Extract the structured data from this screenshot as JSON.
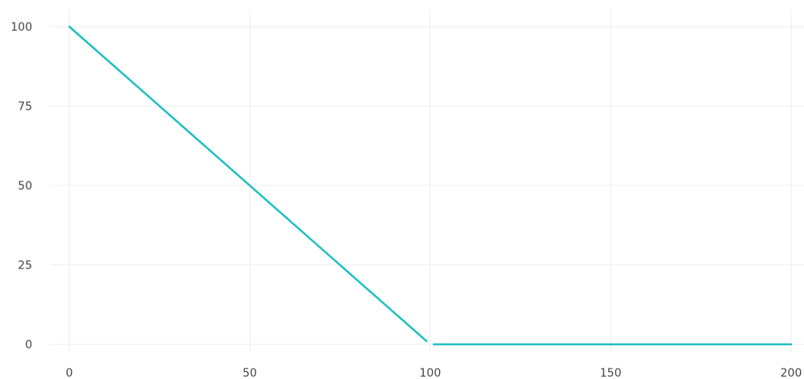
{
  "chart_data": {
    "type": "line",
    "title": "",
    "xlabel": "",
    "ylabel": "",
    "xlim": [
      0,
      200
    ],
    "ylim": [
      0,
      100
    ],
    "x_ticks": [
      0,
      50,
      100,
      150,
      200
    ],
    "y_ticks": [
      0,
      25,
      50,
      75,
      100
    ],
    "x_tick_labels": [
      "0",
      "50",
      "100",
      "150",
      "200"
    ],
    "y_tick_labels": [
      "0",
      "25",
      "50",
      "75",
      "100"
    ],
    "grid": true,
    "legend": "none",
    "line_color": "#1fbfc1",
    "series": [
      {
        "segments": [
          [
            [
              0,
              100
            ],
            [
              99,
              1
            ]
          ],
          [
            [
              101,
              0
            ],
            [
              200,
              0
            ]
          ]
        ]
      }
    ]
  }
}
